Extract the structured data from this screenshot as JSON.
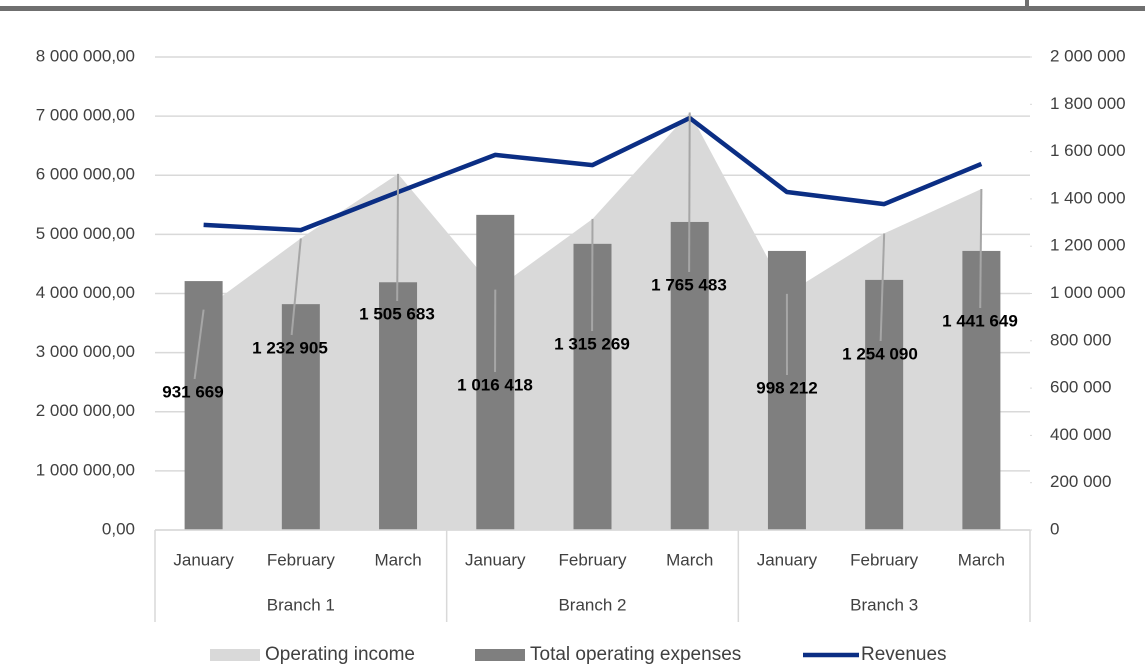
{
  "chart_data": {
    "type": "combo",
    "groups": [
      {
        "name": "Branch 1",
        "categories": [
          "January",
          "February",
          "March"
        ]
      },
      {
        "name": "Branch 2",
        "categories": [
          "January",
          "February",
          "March"
        ]
      },
      {
        "name": "Branch 3",
        "categories": [
          "January",
          "February",
          "March"
        ]
      }
    ],
    "series": [
      {
        "name": "Operating income",
        "type": "area",
        "axis": "y2",
        "color": "#d9d9d9",
        "values": [
          931669,
          1232905,
          1505683,
          1016418,
          1315269,
          1765483,
          998212,
          1254090,
          1441649
        ],
        "value_labels": [
          "931 669",
          "1 232 905",
          "1 505 683",
          "1 016 418",
          "1 315 269",
          "1 765 483",
          "998 212",
          "1 254 090",
          "1 441 649"
        ]
      },
      {
        "name": "Total operating expenses",
        "type": "bar",
        "color": "#7f7f7f",
        "values": [
          4210000,
          3820000,
          4190000,
          5330000,
          4840000,
          5210000,
          4720000,
          4230000,
          4720000
        ]
      },
      {
        "name": "Revenues",
        "type": "line",
        "axis": "y2",
        "color": "#0b2e84",
        "values": [
          1290000,
          1268000,
          1429000,
          1586000,
          1543000,
          1742000,
          1429000,
          1378000,
          1548000
        ]
      }
    ],
    "ylim": [
      0,
      8000000
    ],
    "yticks": [
      {
        "value": 0,
        "label": "0,00"
      },
      {
        "value": 1000000,
        "label": "1 000 000,00"
      },
      {
        "value": 2000000,
        "label": "2 000 000,00"
      },
      {
        "value": 3000000,
        "label": "3 000 000,00"
      },
      {
        "value": 4000000,
        "label": "4 000 000,00"
      },
      {
        "value": 5000000,
        "label": "5 000 000,00"
      },
      {
        "value": 6000000,
        "label": "6 000 000,00"
      },
      {
        "value": 7000000,
        "label": "7 000 000,00"
      },
      {
        "value": 8000000,
        "label": "8 000 000,00"
      }
    ],
    "y2lim": [
      0,
      2000000
    ],
    "y2ticks": [
      0,
      {
        "value": 200000,
        "label": "200 000"
      },
      {
        "value": 400000,
        "label": "400 000"
      },
      {
        "value": 600000,
        "label": "600 000"
      },
      {
        "value": 800000,
        "label": "800 000"
      },
      {
        "value": 1000000,
        "label": "1 000 000"
      },
      {
        "value": 1200000,
        "label": "1 200 000"
      },
      {
        "value": 1400000,
        "label": "1 400 000"
      },
      {
        "value": 1600000,
        "label": "1 600 000"
      },
      {
        "value": 1800000,
        "label": "1 800 000"
      },
      {
        "value": 2000000,
        "label": "2 000 000"
      }
    ],
    "grid": true,
    "legend": "bottom"
  }
}
